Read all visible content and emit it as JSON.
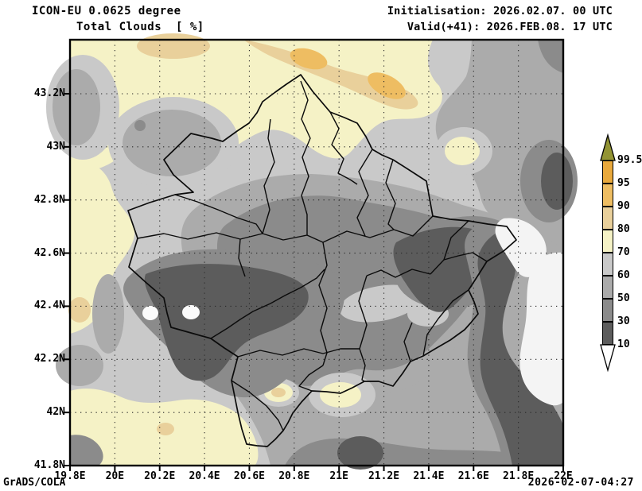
{
  "header": {
    "model_title": "ICON-EU 0.0625 degree",
    "field_title": "Total Clouds  [ %]",
    "init_line": "Initialisation: 2026.02.07. 00 UTC",
    "valid_line": "Valid(+41): 2026.FEB.08. 17 UTC"
  },
  "footer": {
    "brand": "GrADS/COLA",
    "generated": "2026-02-07-04:27"
  },
  "axes": {
    "x_ticks": [
      "19.8E",
      "20E",
      "20.2E",
      "20.4E",
      "20.6E",
      "20.8E",
      "21E",
      "21.2E",
      "21.4E",
      "21.6E",
      "21.8E",
      "22E"
    ],
    "y_ticks": [
      "43.2N",
      "43N",
      "42.8N",
      "42.6N",
      "42.4N",
      "42.2N",
      "42N",
      "41.8N"
    ]
  },
  "colorbar": {
    "boundary_labels": [
      "10",
      "30",
      "50",
      "60",
      "70",
      "80",
      "90",
      "95",
      "99.5"
    ],
    "segment_colors": [
      "#5c5c5c",
      "#8b8b8b",
      "#ababab",
      "#c9c9c9",
      "#f5f2c6",
      "#e9d09b",
      "#eebd62",
      "#e9a93c"
    ],
    "above_color": "#939434",
    "below_color": "#ffffff"
  },
  "chart_data": {
    "type": "filled_contour_map",
    "title": "Total Clouds [ %]",
    "model": "ICON-EU 0.0625 degree",
    "initialisation": "2026.02.07. 00 UTC",
    "valid": "2026.FEB.08. 17 UTC (forecast hour +41)",
    "units": "percent cloud cover",
    "lon_range": [
      19.8,
      22.0
    ],
    "lat_range": [
      41.8,
      43.4
    ],
    "grid_interval_deg": 0.2,
    "contour_levels": [
      10,
      30,
      50,
      60,
      70,
      80,
      90,
      95,
      99.5
    ],
    "palette": {
      "below_10": "#f4f4f4",
      "10_30": "#5c5c5c",
      "30_50": "#8b8b8b",
      "50_60": "#ababab",
      "60_70": "#c9c9c9",
      "70_80": "#f5f2c6",
      "80_90": "#e9d09b",
      "90_95": "#eebd62",
      "95_99.5": "#e9a93c",
      "above_99.5": "#939434"
    },
    "region": "Kosovo with municipality boundaries drawn in black",
    "features": [
      {
        "range": "70-95",
        "where": "broad pale-yellow/tan band across the north (42.95-43.4N) with orange cores near 20.9E 43.35N and 21.3E 43.25N, yellow strip on west edge 42.3-42.9N, and yellow field in the southwest corner below 42.1N"
      },
      {
        "range": "<10",
        "where": "two small white spots near 20.15E/20.35E 42.4N and a large white area along the east edge 21.8-22E between 42.1N and 42.65N"
      },
      {
        "range": "10-30",
        "where": "dark blob over SW Kosovo 20.1-20.9E 42.2-42.55N, elongated dark band east 21.25-21.75E 42.55-42.8N, dark spot on right edge near 21.95E 42.9N, dark patch at bottom near 21.05E 41.8N, dark band into SE corner"
      },
      {
        "range": "30-60",
        "where": "central, southern and eastern Kosovo interior, mid grays"
      }
    ]
  }
}
